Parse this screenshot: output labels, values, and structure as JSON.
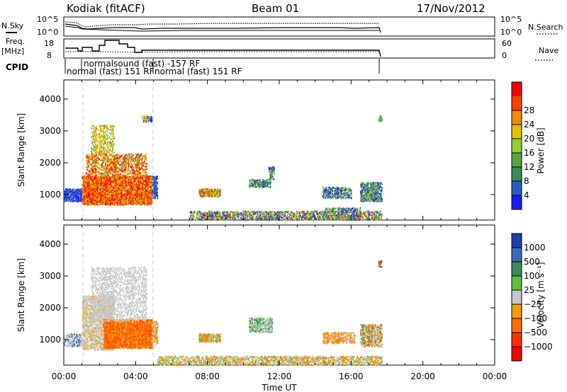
{
  "header": {
    "station": "Kodiak (fitACF)",
    "beam": "Beam 01",
    "date": "17/Nov/2012"
  },
  "top_panels": {
    "nsky": {
      "left_label": "N.Sky",
      "right_label": "N.Search",
      "left_ticks": [
        "10^5",
        "10^0"
      ],
      "right_ticks": [
        "10^5",
        "10^0"
      ]
    },
    "freq": {
      "left_label_1": "Freq.",
      "left_label_2": "[MHz]",
      "right_label": "Nave",
      "left_ticks": [
        "18",
        "8"
      ],
      "right_ticks": [
        "60",
        "0"
      ]
    },
    "cpid": {
      "label": "CPID",
      "entries": [
        "normalsound (fast) -157 RF",
        "normal (fast) 151 RF",
        "normal (fast) 151 RF"
      ]
    }
  },
  "chart_data": [
    {
      "type": "heatmap",
      "name": "power",
      "ylabel": "Slant Range [km]",
      "y_ticks": [
        "1000",
        "2000",
        "3000",
        "4000"
      ],
      "ylim": [
        200,
        4600
      ],
      "x_ticks": [
        "00:00",
        "04:00",
        "08:00",
        "12:00",
        "16:00",
        "20:00",
        "00:00"
      ],
      "xlim_hours": [
        0,
        24
      ],
      "colorbar": {
        "label": "Power [dB]",
        "ticks": [
          "4",
          "8",
          "12",
          "16",
          "20",
          "24",
          "28"
        ],
        "colors": [
          "#1a1aff",
          "#2c5bc0",
          "#3b8a5a",
          "#5aa63c",
          "#9acd32",
          "#e8c000",
          "#f08c00",
          "#ff4000",
          "#ff0000"
        ]
      }
    },
    {
      "type": "heatmap",
      "name": "velocity",
      "ylabel": "Slant Range [km]",
      "y_ticks": [
        "1000",
        "2000",
        "3000",
        "4000"
      ],
      "ylim": [
        200,
        4600
      ],
      "x_ticks": [
        "00:00",
        "04:00",
        "08:00",
        "12:00",
        "16:00",
        "20:00",
        "00:00"
      ],
      "xlabel": "Time UT",
      "xlim_hours": [
        0,
        24
      ],
      "colorbar": {
        "label": "Velocity [m s⁻¹]",
        "ticks": [
          "1000",
          "500",
          "100",
          "25",
          "−25",
          "−100",
          "−500",
          "−1000"
        ],
        "colors": [
          "#1f3fa8",
          "#3a6cb4",
          "#3b8a5a",
          "#5fc040",
          "#c8c8c8",
          "#f0a000",
          "#ff7000",
          "#ff3000",
          "#ff0000"
        ]
      }
    }
  ]
}
